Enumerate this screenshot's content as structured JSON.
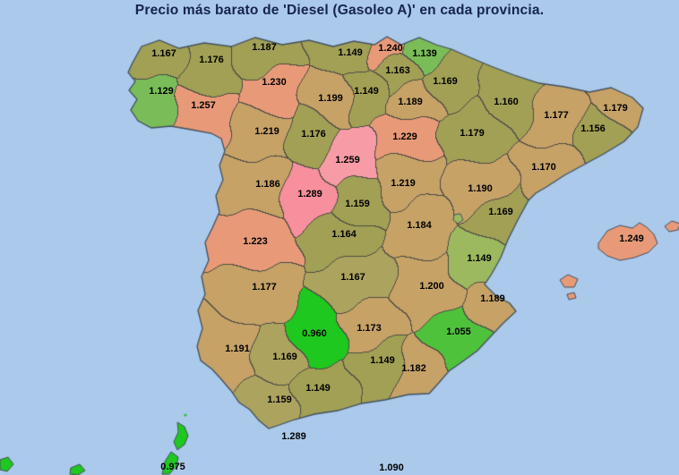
{
  "title": "Precio más barato de 'Diesel (Gasoleo A)' en cada provincia.",
  "colors": {
    "sea": "#abc9ea",
    "title_text": "#15234f",
    "province_border": "#4f4d45",
    "coastline": "#42505e",
    "label_text": "#000000",
    "olive": "#a1a055",
    "green": "#7abd58",
    "bright_green": "#1ec81e",
    "mid_green": "#4fc23c",
    "yellow_green": "#9cb95f",
    "khaki": "#aca35e",
    "tan": "#c6a267",
    "salmon": "#e89a78",
    "pink": "#f78f9c",
    "pink_light": "#f79ca6"
  },
  "provinces": [
    {
      "name": "A Coruña",
      "value": "1.167",
      "fill": "#a1a055"
    },
    {
      "name": "Lugo",
      "value": "1.176",
      "fill": "#a1a055"
    },
    {
      "name": "Asturias",
      "value": "1.187",
      "fill": "#a1a055"
    },
    {
      "name": "Cantabria",
      "value": "1.149",
      "fill": "#a1a055"
    },
    {
      "name": "Bizkaia",
      "value": "1.240",
      "fill": "#e89a78"
    },
    {
      "name": "Gipuzkoa",
      "value": "1.139",
      "fill": "#7abd58"
    },
    {
      "name": "Álava",
      "value": "1.163",
      "fill": "#a1a055"
    },
    {
      "name": "Navarra",
      "value": "1.169",
      "fill": "#a1a055"
    },
    {
      "name": "Huesca",
      "value": "1.160",
      "fill": "#a1a055"
    },
    {
      "name": "Lleida",
      "value": "1.177",
      "fill": "#c6a267"
    },
    {
      "name": "Girona",
      "value": "1.179",
      "fill": "#c6a267"
    },
    {
      "name": "Barcelona",
      "value": "1.156",
      "fill": "#a1a055"
    },
    {
      "name": "Tarragona",
      "value": "1.170",
      "fill": "#c6a267"
    },
    {
      "name": "Pontevedra",
      "value": "1.129",
      "fill": "#7abd58"
    },
    {
      "name": "Ourense",
      "value": "1.257",
      "fill": "#e89a78"
    },
    {
      "name": "León",
      "value": "1.230",
      "fill": "#e89a78"
    },
    {
      "name": "Palencia",
      "value": "1.199",
      "fill": "#c6a267"
    },
    {
      "name": "Burgos",
      "value": "1.149",
      "fill": "#a1a055"
    },
    {
      "name": "La Rioja",
      "value": "1.189",
      "fill": "#c6a267"
    },
    {
      "name": "Zaragoza",
      "value": "1.179",
      "fill": "#a1a055"
    },
    {
      "name": "Zamora",
      "value": "1.219",
      "fill": "#c6a267"
    },
    {
      "name": "Valladolid",
      "value": "1.176",
      "fill": "#a1a055"
    },
    {
      "name": "Soria",
      "value": "1.229",
      "fill": "#e89a78"
    },
    {
      "name": "Segovia",
      "value": "1.259",
      "fill": "#f79ca6"
    },
    {
      "name": "Guadalajara",
      "value": "1.219",
      "fill": "#c6a267"
    },
    {
      "name": "Teruel",
      "value": "1.190",
      "fill": "#c6a267"
    },
    {
      "name": "Salamanca",
      "value": "1.186",
      "fill": "#c6a267"
    },
    {
      "name": "Ávila",
      "value": "1.289",
      "fill": "#f78f9c"
    },
    {
      "name": "Madrid",
      "value": "1.159",
      "fill": "#a1a055"
    },
    {
      "name": "Cuenca",
      "value": "1.184",
      "fill": "#c6a267"
    },
    {
      "name": "Castellón",
      "value": "1.169",
      "fill": "#a1a055"
    },
    {
      "name": "Valencia",
      "value": "1.149",
      "fill": "#9cb95f"
    },
    {
      "name": "Cáceres",
      "value": "1.223",
      "fill": "#e89a78"
    },
    {
      "name": "Toledo",
      "value": "1.164",
      "fill": "#a1a055"
    },
    {
      "name": "Ciudad Real",
      "value": "1.167",
      "fill": "#aca35e"
    },
    {
      "name": "Albacete",
      "value": "1.200",
      "fill": "#c6a267"
    },
    {
      "name": "Alicante",
      "value": "1.189",
      "fill": "#c6a267"
    },
    {
      "name": "Badajoz",
      "value": "1.177",
      "fill": "#c6a267"
    },
    {
      "name": "Córdoba",
      "value": "0.960",
      "fill": "#1ec81e"
    },
    {
      "name": "Jaén",
      "value": "1.173",
      "fill": "#c6a267"
    },
    {
      "name": "Murcia",
      "value": "1.055",
      "fill": "#4fc23c"
    },
    {
      "name": "Granada",
      "value": "1.149",
      "fill": "#a1a055"
    },
    {
      "name": "Almería",
      "value": "1.182",
      "fill": "#c6a267"
    },
    {
      "name": "Huelva",
      "value": "1.191",
      "fill": "#c6a267"
    },
    {
      "name": "Sevilla",
      "value": "1.169",
      "fill": "#aca35e"
    },
    {
      "name": "Málaga",
      "value": "1.149",
      "fill": "#a1a055"
    },
    {
      "name": "Cádiz",
      "value": "1.159",
      "fill": "#aca35e"
    },
    {
      "name": "Illes Balears",
      "value": "1.249",
      "fill": "#e89a78"
    },
    {
      "name": "Canarias",
      "value": "0.975",
      "fill": "#1ec81e"
    },
    {
      "name": "Ceuta",
      "value": "1.289",
      "fill": null
    },
    {
      "name": "Melilla",
      "value": "1.090",
      "fill": null
    }
  ]
}
